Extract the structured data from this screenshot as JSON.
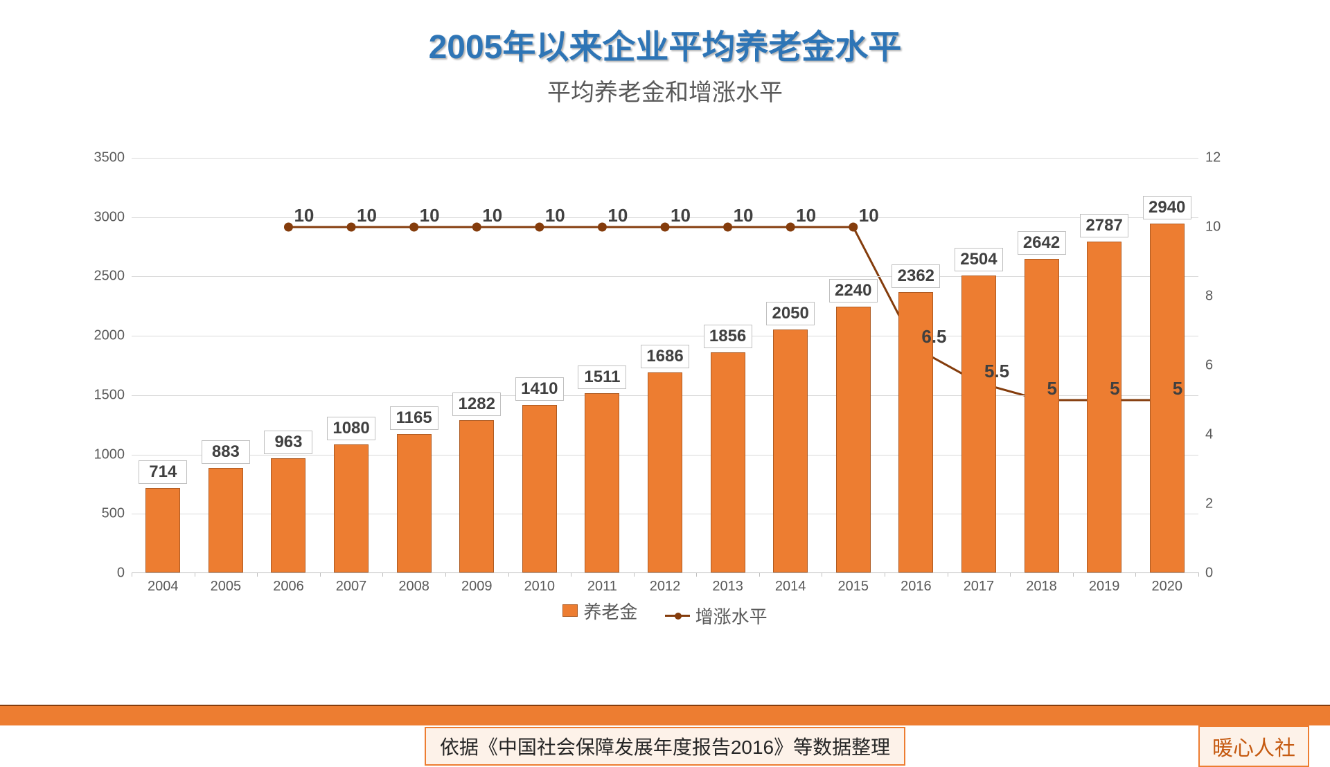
{
  "title": "2005年以来企业平均养老金水平",
  "subtitle": "平均养老金和增涨水平",
  "chart": {
    "type": "bar+line",
    "categories": [
      "2004",
      "2005",
      "2006",
      "2007",
      "2008",
      "2009",
      "2010",
      "2011",
      "2012",
      "2013",
      "2014",
      "2015",
      "2016",
      "2017",
      "2018",
      "2019",
      "2020"
    ],
    "bar_series": {
      "name": "养老金",
      "values": [
        714,
        883,
        963,
        1080,
        1165,
        1282,
        1410,
        1511,
        1686,
        1856,
        2050,
        2240,
        2362,
        2504,
        2642,
        2787,
        2940
      ],
      "color": "#ed7d31",
      "border_color": "#ae5a21",
      "bar_label_border": "#bfbfbf",
      "bar_label_bg": "#ffffff"
    },
    "line_series": {
      "name": "增涨水平",
      "values": [
        null,
        null,
        10,
        10,
        10,
        10,
        10,
        10,
        10,
        10,
        10,
        10,
        6.5,
        5.5,
        5,
        5,
        5
      ],
      "color": "#843c0c",
      "marker_radius": 6,
      "line_width": 3
    },
    "y_left": {
      "min": 0,
      "max": 3500,
      "step": 500
    },
    "y_right": {
      "min": 0,
      "max": 12,
      "step": 2
    },
    "grid_color": "#d9d9d9",
    "axis_color": "#bfbfbf",
    "label_color": "#595959",
    "data_label_color": "#404040",
    "title_color": "#2e75b6",
    "title_fontsize": 48,
    "subtitle_fontsize": 34,
    "axis_fontsize": 20,
    "data_label_fontsize": 24,
    "background_color": "#ffffff"
  },
  "legend": {
    "bar_label": "养老金",
    "line_label": "增涨水平"
  },
  "footer": {
    "source": "依据《中国社会保障发展年度报告2016》等数据整理",
    "brand": "暖心人社",
    "band_color": "#ed7d31",
    "box_bg": "#fdf2e9",
    "box_border": "#ed7d31",
    "brand_color": "#c55a11"
  }
}
